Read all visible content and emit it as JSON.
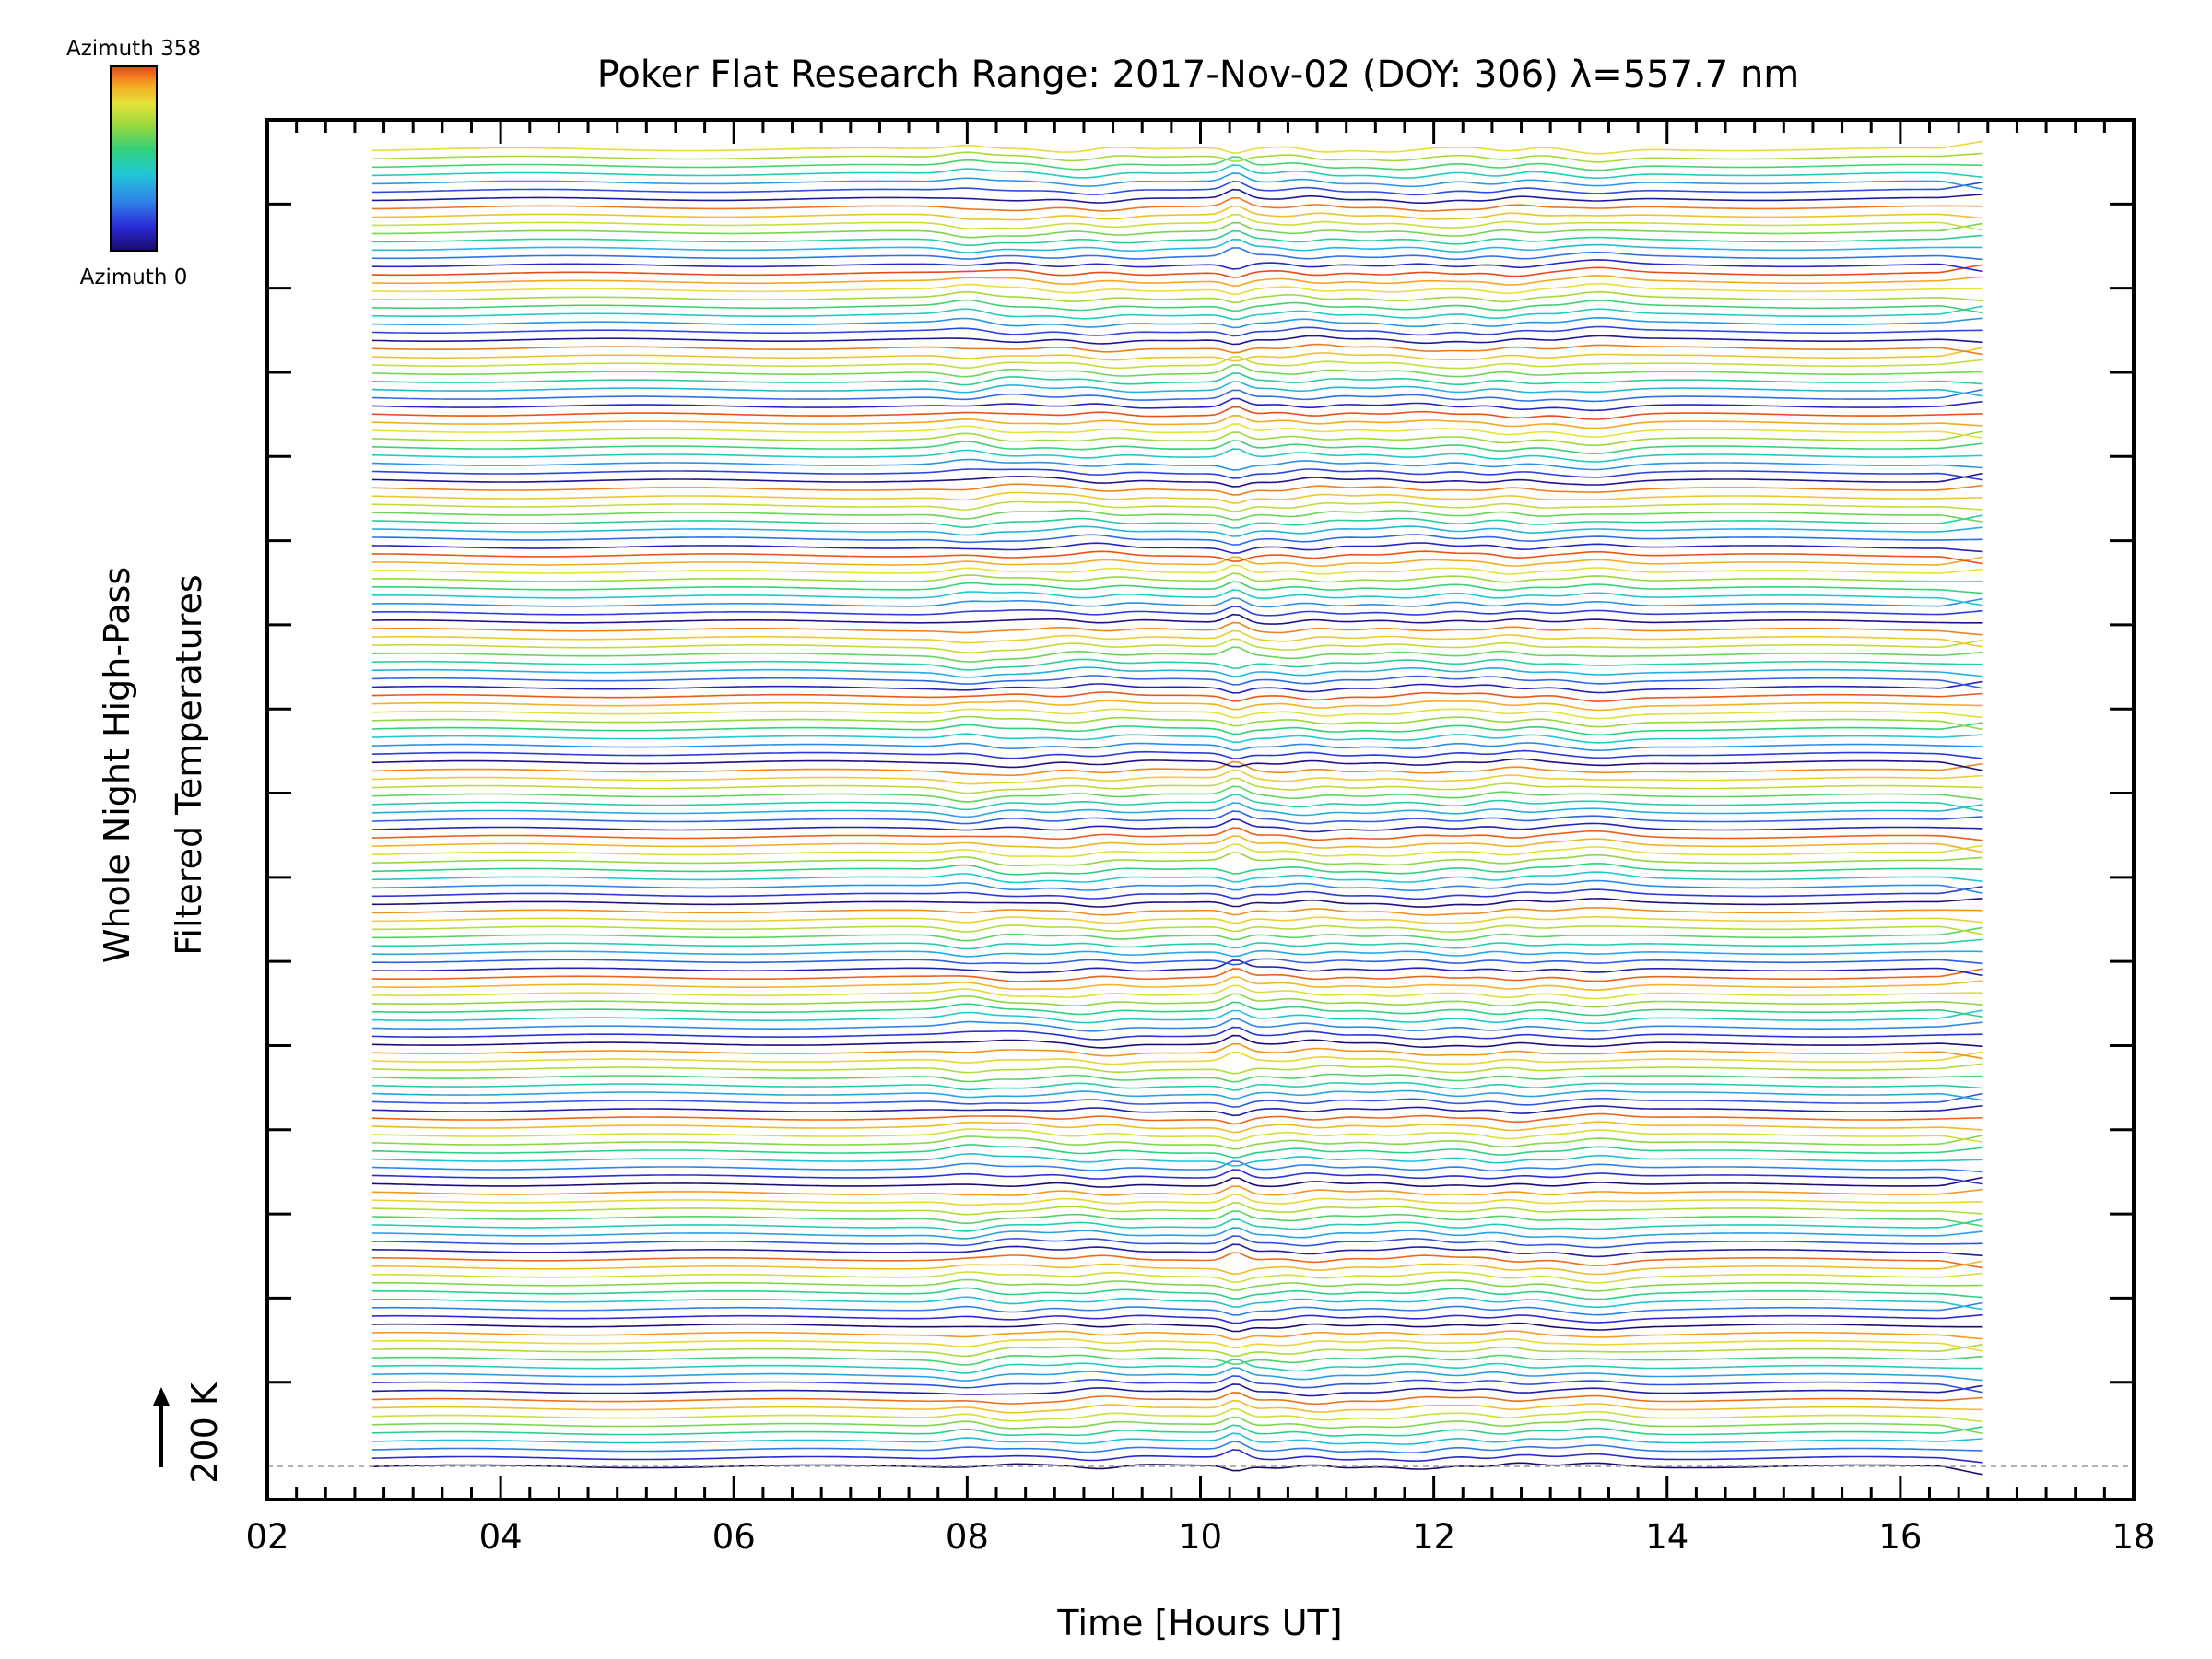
{
  "chart_data": {
    "type": "line",
    "title": "Poker Flat Research Range: 2017-Nov-02 (DOY: 306) λ=557.7 nm",
    "xlabel": "Time [Hours UT]",
    "ylabel_line1": "Whole Night High-Pass",
    "ylabel_line2": "Filtered Temperatures",
    "scale_label": "200 K",
    "xlim": [
      2,
      18
    ],
    "x_ticks": [
      "02",
      "04",
      "06",
      "08",
      "10",
      "12",
      "14",
      "16",
      "18"
    ],
    "x_tick_values": [
      2,
      4,
      6,
      8,
      10,
      12,
      14,
      16,
      18
    ],
    "data_time_range": [
      2.9,
      16.7
    ],
    "stack_offset_kelvin": 200,
    "stack_spacing_note": "stacked traces, offset per azimuth",
    "azimuth_range": [
      0,
      358
    ],
    "trace_count": 160,
    "colorbar": {
      "label_top": "Azimuth 358",
      "label_bottom": "Azimuth 0",
      "colors": [
        "#1a0a6b",
        "#2a2bd6",
        "#2f84e8",
        "#21c8d4",
        "#32d07a",
        "#9ad83c",
        "#e6e23a",
        "#f5a623",
        "#e8441a"
      ]
    },
    "wave_features_hours_ut": [
      8.0,
      8.4,
      9.1,
      10.3,
      10.9,
      11.9,
      12.6,
      13.4
    ]
  }
}
